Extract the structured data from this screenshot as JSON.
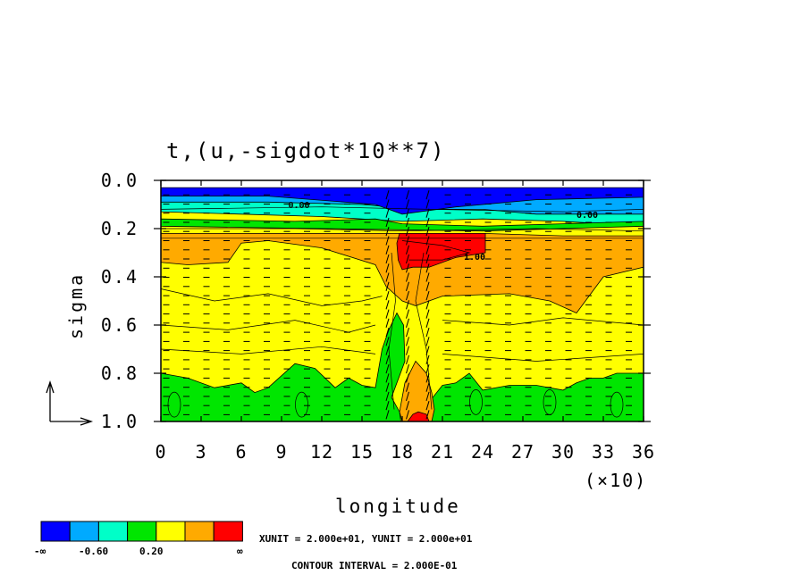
{
  "colors": {
    "blue": "#0000ff",
    "light_blue": "#00aaff",
    "cyan": "#00ffc8",
    "green": "#00e600",
    "yellow": "#ffff00",
    "orange": "#ffaa00",
    "red": "#ff0000"
  },
  "chart_data": {
    "type": "heatmap",
    "title": "t,(u,-sigdot*10**7)",
    "xlabel": "longitude",
    "ylabel": "sigma",
    "x_multiplier_label": "(×10)",
    "xlim": [
      0,
      36
    ],
    "ylim": [
      1.0,
      0.0
    ],
    "x_ticks": [
      "0",
      "3",
      "6",
      "9",
      "12",
      "15",
      "18",
      "21",
      "24",
      "27",
      "30",
      "33",
      "36"
    ],
    "y_ticks": [
      "0.0",
      "0.2",
      "0.4",
      "0.6",
      "0.8",
      "1.0"
    ],
    "contour_labels": [
      "0.00",
      "0.00",
      "1.00"
    ],
    "colorbar": {
      "labels": [
        "-∞",
        "-0.60",
        "0.20",
        "∞"
      ],
      "levels": [
        "-∞",
        "-1.0",
        "-0.6",
        "-0.2",
        "0.2",
        "0.6",
        "1.0",
        "∞"
      ]
    },
    "xunit_text": "XUNIT = 2.000e+01, YUNIT = 2.000e+01",
    "contour_interval_text": "CONTOUR INTERVAL = 2.000E-01",
    "regions": [
      {
        "name": "background",
        "value_band": "-0.2 to 0.2",
        "color": "yellow",
        "poly": [
          [
            0,
            0.08
          ],
          [
            36,
            0.08
          ],
          [
            36,
            1
          ],
          [
            0,
            1
          ]
        ]
      },
      {
        "name": "upper-cyan-band",
        "value_band": "-0.6 to -0.2",
        "color": "cyan",
        "poly": [
          [
            0,
            0.07
          ],
          [
            36,
            0.07
          ],
          [
            36,
            0.19
          ],
          [
            30,
            0.17
          ],
          [
            24,
            0.16
          ],
          [
            18,
            0.17
          ],
          [
            12,
            0.15
          ],
          [
            6,
            0.14
          ],
          [
            0,
            0.13
          ]
        ]
      },
      {
        "name": "upper-lightblue",
        "value_band": "-1.0 to -0.6",
        "color": "light_blue",
        "poly": [
          [
            0,
            0.05
          ],
          [
            36,
            0.05
          ],
          [
            36,
            0.14
          ],
          [
            28,
            0.14
          ],
          [
            24,
            0.12
          ],
          [
            19,
            0.12
          ],
          [
            15,
            0.1
          ],
          [
            8,
            0.09
          ],
          [
            0,
            0.09
          ]
        ]
      },
      {
        "name": "top-blue",
        "value_band": "< -1.0",
        "color": "blue",
        "poly": [
          [
            0,
            0.03
          ],
          [
            36,
            0.03
          ],
          [
            36,
            0.07
          ],
          [
            28,
            0.08
          ],
          [
            22,
            0.11
          ],
          [
            18,
            0.14
          ],
          [
            16,
            0.1
          ],
          [
            8,
            0.065
          ],
          [
            0,
            0.065
          ]
        ]
      },
      {
        "name": "upper-green-strip",
        "value_band": "-0.6 to -0.2",
        "color": "green",
        "poly": [
          [
            0,
            0.16
          ],
          [
            10,
            0.17
          ],
          [
            16,
            0.16
          ],
          [
            18,
            0.18
          ],
          [
            24,
            0.19
          ],
          [
            30,
            0.18
          ],
          [
            36,
            0.17
          ],
          [
            36,
            0.19
          ],
          [
            24,
            0.21
          ],
          [
            12,
            0.2
          ],
          [
            0,
            0.19
          ]
        ]
      },
      {
        "name": "upper-orange-band",
        "value_band": "0.2 to 0.6",
        "color": "orange",
        "poly": [
          [
            0,
            0.22
          ],
          [
            8,
            0.22
          ],
          [
            16,
            0.22
          ],
          [
            24,
            0.22
          ],
          [
            30,
            0.23
          ],
          [
            36,
            0.23
          ],
          [
            36,
            0.36
          ],
          [
            33,
            0.4
          ],
          [
            31,
            0.55
          ],
          [
            29,
            0.5
          ],
          [
            26,
            0.47
          ],
          [
            21,
            0.48
          ],
          [
            19,
            0.52
          ],
          [
            18,
            0.5
          ],
          [
            16.8,
            0.44
          ],
          [
            16,
            0.35
          ],
          [
            12,
            0.28
          ],
          [
            8,
            0.25
          ],
          [
            6,
            0.26
          ],
          [
            5,
            0.34
          ],
          [
            2,
            0.35
          ],
          [
            0,
            0.34
          ]
        ]
      },
      {
        "name": "lower-green",
        "value_band": "-0.6 to -0.2",
        "color": "green",
        "poly": [
          [
            0,
            0.8
          ],
          [
            2,
            0.82
          ],
          [
            4,
            0.86
          ],
          [
            6,
            0.84
          ],
          [
            7,
            0.88
          ],
          [
            8,
            0.86
          ],
          [
            9,
            0.81
          ],
          [
            10,
            0.76
          ],
          [
            11.5,
            0.78
          ],
          [
            13,
            0.86
          ],
          [
            14,
            0.82
          ],
          [
            15,
            0.85
          ],
          [
            16,
            0.86
          ],
          [
            16.5,
            0.7
          ],
          [
            17,
            0.62
          ],
          [
            17.6,
            0.55
          ],
          [
            18.1,
            0.6
          ],
          [
            18.2,
            0.75
          ],
          [
            17.6,
            0.84
          ],
          [
            17.2,
            0.9
          ],
          [
            17.8,
            0.96
          ],
          [
            17.9,
            1
          ],
          [
            19.8,
            1
          ],
          [
            20,
            0.92
          ],
          [
            21,
            0.85
          ],
          [
            22,
            0.84
          ],
          [
            23,
            0.8
          ],
          [
            24,
            0.87
          ],
          [
            26,
            0.85
          ],
          [
            28,
            0.85
          ],
          [
            30,
            0.87
          ],
          [
            31,
            0.84
          ],
          [
            32,
            0.82
          ],
          [
            33,
            0.82
          ],
          [
            34,
            0.8
          ],
          [
            36,
            0.8
          ],
          [
            36,
            1
          ],
          [
            0,
            1
          ]
        ]
      },
      {
        "name": "lower-orange-plume",
        "value_band": "0.2 to 0.6",
        "color": "orange",
        "poly": [
          [
            17.8,
            0.96
          ],
          [
            18.2,
            0.84
          ],
          [
            19,
            0.75
          ],
          [
            19.8,
            0.8
          ],
          [
            20.2,
            0.88
          ],
          [
            20.4,
            0.95
          ],
          [
            20.2,
            1
          ],
          [
            18,
            1
          ]
        ]
      },
      {
        "name": "surface-red-blob",
        "value_band": "> 1.0",
        "color": "red",
        "poly": [
          [
            18.4,
            1
          ],
          [
            18.8,
            0.97
          ],
          [
            19.2,
            0.96
          ],
          [
            19.8,
            0.97
          ],
          [
            20,
            1
          ]
        ]
      },
      {
        "name": "upper-red-core",
        "value_band": "> 1.0",
        "color": "red",
        "poly": [
          [
            17.8,
            0.22
          ],
          [
            20,
            0.22
          ],
          [
            22,
            0.22
          ],
          [
            24.2,
            0.22
          ],
          [
            24.2,
            0.3
          ],
          [
            22,
            0.32
          ],
          [
            20,
            0.36
          ],
          [
            18.8,
            0.36
          ],
          [
            18,
            0.37
          ],
          [
            17.7,
            0.33
          ],
          [
            17.6,
            0.26
          ]
        ]
      }
    ]
  }
}
